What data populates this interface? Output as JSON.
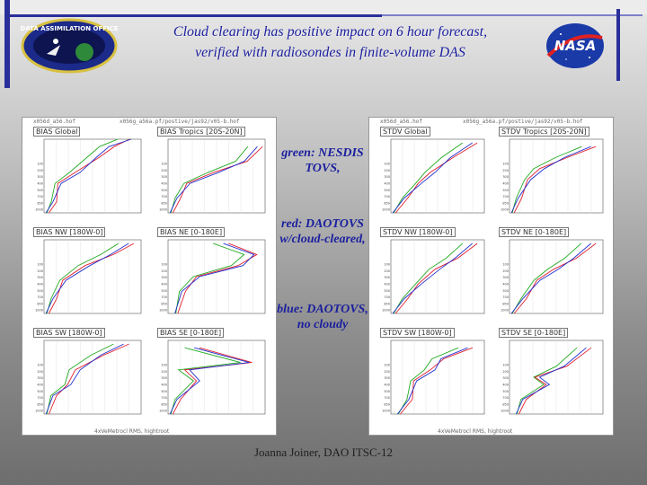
{
  "slide": {
    "title_line1": "Cloud clearing has positive impact on 6 hour forecast,",
    "title_line2": "verified with radiosondes in finite-volume DAS",
    "legend": {
      "green": "green: NESDIS TOVS,",
      "red": "red: DAOTOVS w/cloud-cleared,",
      "blue": "blue: DAOTOVS, no cloudy"
    },
    "credit": "Joanna Joiner, DAO ITSC-12"
  },
  "logos": {
    "dao_text": "DATA ASSIMILATION OFFICE",
    "nasa_text": "NASA"
  },
  "colors": {
    "title": "#1b1f9e",
    "green": "#22aa22",
    "red": "#e02030",
    "blue": "#2030d0"
  },
  "panels": {
    "bias": {
      "file_left": "x056d_a56.hof",
      "file_right": "x056g_a56a.pf/postive/jas92/v05-b.hof",
      "footer": "4xVeMetrocl RMS, hightroot",
      "plots": [
        {
          "id": "bias-global",
          "title": "BIAS Global"
        },
        {
          "id": "bias-tropics",
          "title": "BIAS Tropics [20S-20N]"
        },
        {
          "id": "bias-nw",
          "title": "BIAS NW [180W-0]"
        },
        {
          "id": "bias-ne",
          "title": "BIAS NE [0-180E]"
        },
        {
          "id": "bias-sw",
          "title": "BIAS SW [180W-0]"
        },
        {
          "id": "bias-se",
          "title": "BIAS SE [0-180E]"
        }
      ]
    },
    "stdv": {
      "file_left": "x056d_a56.hof",
      "file_right": "x056g_a56a.pf/postive/jas92/v05-b.hof",
      "footer": "4xVeMetrocl RMS, hightroot",
      "plots": [
        {
          "id": "stdv-global",
          "title": "STDV Global"
        },
        {
          "id": "stdv-tropics",
          "title": "STDV Tropics [20S-20N]"
        },
        {
          "id": "stdv-nw",
          "title": "STDV NW [180W-0]"
        },
        {
          "id": "stdv-ne",
          "title": "STDV NE [0-180E]"
        },
        {
          "id": "stdv-sw",
          "title": "STDV SW [180W-0]"
        },
        {
          "id": "stdv-se",
          "title": "STDV SE [0-180E]"
        }
      ]
    }
  },
  "axis": {
    "pressure_ticks": [
      "100",
      "200",
      "300",
      "400",
      "500",
      "700",
      "850",
      "1000"
    ]
  }
}
